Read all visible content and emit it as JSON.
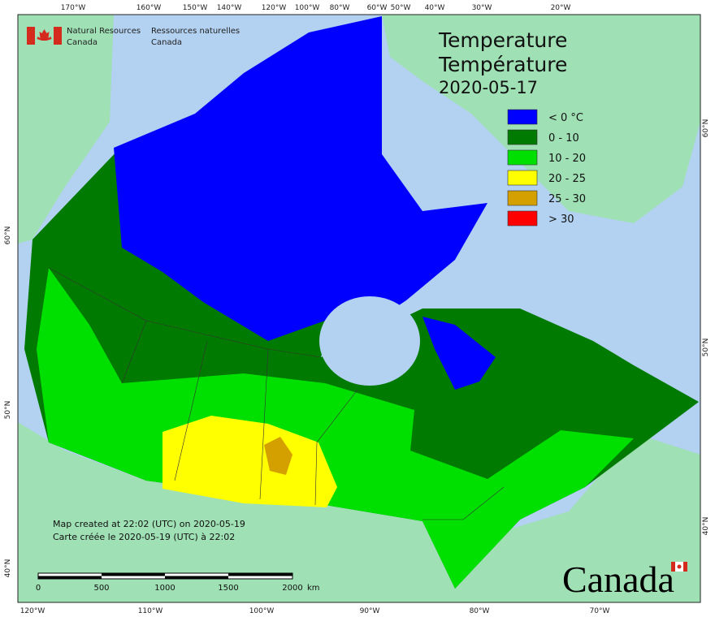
{
  "header": {
    "en_line1": "Natural Resources",
    "en_line2": "Canada",
    "fr_line1": "Ressources naturelles",
    "fr_line2": "Canada"
  },
  "title": {
    "en": "Temperature",
    "fr": "Température",
    "date": "2020-05-17"
  },
  "legend": [
    {
      "label": "< 0 °C",
      "color": "#0000ff"
    },
    {
      "label": "0 - 10",
      "color": "#007a00"
    },
    {
      "label": "10 - 20",
      "color": "#00e000"
    },
    {
      "label": "20 - 25",
      "color": "#ffff00"
    },
    {
      "label": "25 - 30",
      "color": "#d4a000"
    },
    {
      "label": "> 30",
      "color": "#ff0000"
    }
  ],
  "graticule": {
    "top": [
      "170°W",
      "160°W",
      "150°W",
      "140°W",
      "120°W",
      "100°W",
      "80°W",
      "60°W",
      "50°W",
      "40°W",
      "30°W",
      "20°W"
    ],
    "bottom": [
      "120°W",
      "110°W",
      "100°W",
      "90°W",
      "80°W",
      "70°W"
    ],
    "left": [
      "60°N",
      "50°N",
      "40°N"
    ],
    "right": [
      "60°N",
      "50°N",
      "40°N"
    ]
  },
  "notes": [
    "Map created at 22:02 (UTC) on 2020-05-19",
    "Carte créée le 2020-05-19 (UTC) à 22:02"
  ],
  "scale_bar": {
    "labels": [
      "0",
      "500",
      "1000",
      "1500",
      "2000"
    ],
    "unit": "km"
  },
  "wordmark": "Canada"
}
